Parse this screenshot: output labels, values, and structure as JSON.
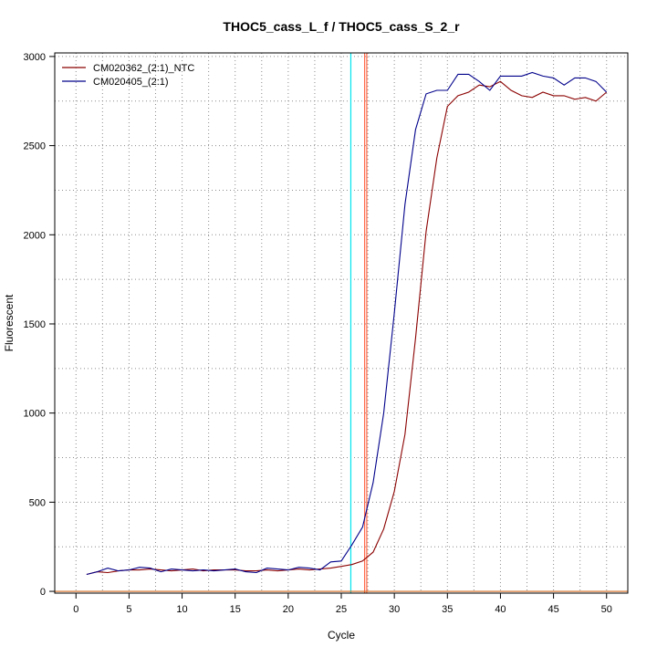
{
  "chart_data": {
    "type": "line",
    "title": "THOC5_cass_L_f / THOC5_cass_S_2_r",
    "xlabel": "Cycle",
    "ylabel": "Fluorescent",
    "xlim": [
      -2,
      52
    ],
    "ylim": [
      -10,
      3020
    ],
    "xticks": [
      0,
      5,
      10,
      15,
      20,
      25,
      30,
      35,
      40,
      45,
      50
    ],
    "yticks": [
      0,
      500,
      1000,
      1500,
      2000,
      2500,
      3000
    ],
    "grid": true,
    "legend_position": "top-left",
    "series": [
      {
        "name": "CM020362_(2:1)_NTC",
        "color": "#8b0000",
        "x": [
          1,
          2,
          3,
          4,
          5,
          6,
          7,
          8,
          9,
          10,
          11,
          12,
          13,
          14,
          15,
          16,
          17,
          18,
          19,
          20,
          21,
          22,
          23,
          24,
          25,
          26,
          27,
          28,
          29,
          30,
          31,
          32,
          33,
          34,
          35,
          36,
          37,
          38,
          39,
          40,
          41,
          42,
          43,
          44,
          45,
          46,
          47,
          48,
          49,
          50
        ],
        "values": [
          95,
          110,
          105,
          115,
          120,
          120,
          125,
          120,
          115,
          120,
          125,
          115,
          120,
          120,
          120,
          115,
          115,
          120,
          115,
          120,
          125,
          120,
          125,
          130,
          140,
          150,
          170,
          220,
          350,
          560,
          880,
          1420,
          2020,
          2430,
          2720,
          2780,
          2800,
          2840,
          2830,
          2860,
          2810,
          2780,
          2770,
          2800,
          2780,
          2780,
          2760,
          2770,
          2750,
          2800
        ]
      },
      {
        "name": "CM020405_(2:1)",
        "color": "#00008b",
        "x": [
          1,
          2,
          3,
          4,
          5,
          6,
          7,
          8,
          9,
          10,
          11,
          12,
          13,
          14,
          15,
          16,
          17,
          18,
          19,
          20,
          21,
          22,
          23,
          24,
          25,
          26,
          27,
          28,
          29,
          30,
          31,
          32,
          33,
          34,
          35,
          36,
          37,
          38,
          39,
          40,
          41,
          42,
          43,
          44,
          45,
          46,
          47,
          48,
          49,
          50
        ],
        "values": [
          95,
          110,
          130,
          115,
          120,
          135,
          130,
          110,
          125,
          120,
          115,
          120,
          115,
          120,
          125,
          110,
          105,
          130,
          125,
          120,
          135,
          130,
          120,
          165,
          170,
          260,
          360,
          610,
          1000,
          1560,
          2170,
          2590,
          2790,
          2810,
          2810,
          2900,
          2900,
          2860,
          2810,
          2890,
          2890,
          2890,
          2910,
          2890,
          2880,
          2840,
          2880,
          2880,
          2860,
          2800
        ]
      }
    ],
    "threshold_line": {
      "y": 0,
      "color": "#d2691e"
    },
    "vertical_markers": [
      {
        "x": 25.9,
        "color": "#00e5ee"
      },
      {
        "x": 27.2,
        "color": "#ff6a4a"
      },
      {
        "x": 27.4,
        "color": "#ff6a4a"
      }
    ]
  }
}
